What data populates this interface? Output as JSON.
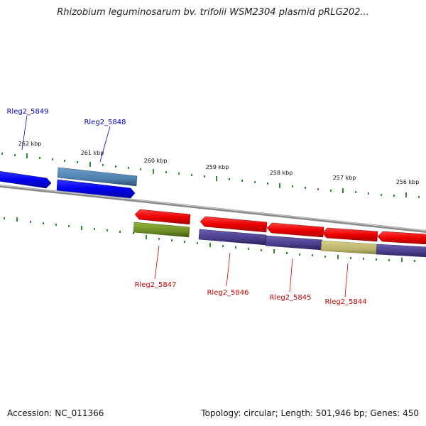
{
  "title": "Rhizobium leguminosarum bv. trifolii WSM2304 plasmid pRLG202...",
  "footer": {
    "accession": "Accession: NC_011366",
    "summary": "Topology: circular; Length: 501,946 bp; Genes: 450"
  },
  "colors": {
    "backbone": "#8a8a8a",
    "tick": "#2e8b2e",
    "forward_label": "#0000cc",
    "reverse_label": "#cc0000",
    "forward_gene": "#0000ee",
    "reverse_gene": "#ee0000",
    "cog_steel_blue": "#4f81b1",
    "cog_olive": "#6b8e23",
    "cog_slate": "#483d8b",
    "cog_khaki": "#bdb76b"
  },
  "ticks": [
    {
      "label": "262 kbp"
    },
    {
      "label": "261 kbp"
    },
    {
      "label": "260 kbp"
    },
    {
      "label": "259 kbp"
    },
    {
      "label": "258 kbp"
    },
    {
      "label": "257 kbp"
    },
    {
      "label": "256 kbp"
    }
  ],
  "genes": [
    {
      "name": "Rleg2_5849",
      "strand": "forward",
      "cog_color": "blue"
    },
    {
      "name": "Rleg2_5848",
      "strand": "forward",
      "cog_color": "steel-blue"
    },
    {
      "name": "Rleg2_5847",
      "strand": "reverse",
      "cog_color": "olive"
    },
    {
      "name": "Rleg2_5846",
      "strand": "reverse",
      "cog_color": "slate"
    },
    {
      "name": "Rleg2_5845",
      "strand": "reverse",
      "cog_color": "slate"
    },
    {
      "name": "Rleg2_5844",
      "strand": "reverse",
      "cog_color": "khaki"
    }
  ]
}
